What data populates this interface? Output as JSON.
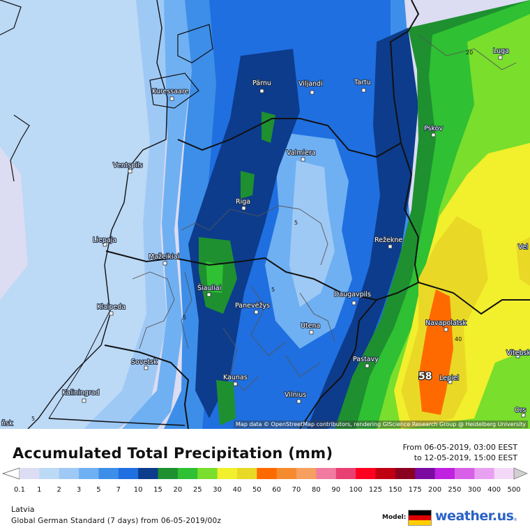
{
  "title": "Accumulated Total Precipitation (mm)",
  "period": {
    "from": "From 06-05-2019, 03:00 EEST",
    "to": "to 12-05-2019, 15:00 EEST"
  },
  "region": "Latvia",
  "model_line": "Global German Standard (7 days) from 06-05-2019/00z",
  "model_label": "Model:",
  "brand": {
    "name": "weather.us",
    "sub": "®"
  },
  "attribution": "Map data © OpenStreetMap contributors, rendering GIScience Research Group @ Heidelberg University",
  "legend": {
    "ticks": [
      "0.1",
      "1",
      "2",
      "3",
      "5",
      "7",
      "10",
      "15",
      "20",
      "25",
      "30",
      "40",
      "50",
      "60",
      "70",
      "80",
      "90",
      "100",
      "125",
      "150",
      "175",
      "200",
      "250",
      "300",
      "400",
      "500"
    ],
    "colors": [
      "#dcdcf2",
      "#bcd9f5",
      "#9fc9f5",
      "#6fb0f2",
      "#3d8ee8",
      "#1f6fe0",
      "#0d3c8c",
      "#1e9030",
      "#2fc033",
      "#79de2c",
      "#f2ef2d",
      "#e9d926",
      "#ff6a00",
      "#f58a2f",
      "#f5a060",
      "#f07aa0",
      "#e84070",
      "#ff0020",
      "#c00010",
      "#8a0020",
      "#7a0aa0",
      "#c020e0",
      "#d860e8",
      "#e8a0f0",
      "#f4d8f8",
      "#d0d0d0"
    ]
  },
  "cities": [
    {
      "name": "Pärnu"
    },
    {
      "name": "Viljandi"
    },
    {
      "name": "Tartu"
    },
    {
      "name": "Kuressaare"
    },
    {
      "name": "Luga"
    },
    {
      "name": "Pskov"
    },
    {
      "name": "Valmiera"
    },
    {
      "name": "Ventspils"
    },
    {
      "name": "Riga"
    },
    {
      "name": "Liepaja"
    },
    {
      "name": "Režekne"
    },
    {
      "name": "Mažeikiai"
    },
    {
      "name": "Šiauliai"
    },
    {
      "name": "Panevėžys"
    },
    {
      "name": "Daugavpils"
    },
    {
      "name": "Klaipeda"
    },
    {
      "name": "Utena"
    },
    {
      "name": "Navapolatsk"
    },
    {
      "name": "Sovetsk"
    },
    {
      "name": "Pastavy"
    },
    {
      "name": "Vitebsk"
    },
    {
      "name": "Kaunas"
    },
    {
      "name": "Lepiel"
    },
    {
      "name": "Kaliningrad"
    },
    {
      "name": "Vilnius"
    },
    {
      "name": "Ors"
    },
    {
      "name": "Vel"
    },
    {
      "name": "ňsk"
    }
  ],
  "contour_labels": [
    "5",
    "5",
    "5",
    "20",
    "40",
    "5"
  ],
  "max_value": "58",
  "colors": {
    "sea": "#dcdcf2",
    "flag_black": "#000000",
    "flag_red": "#dd0000",
    "flag_gold": "#ffce00"
  }
}
